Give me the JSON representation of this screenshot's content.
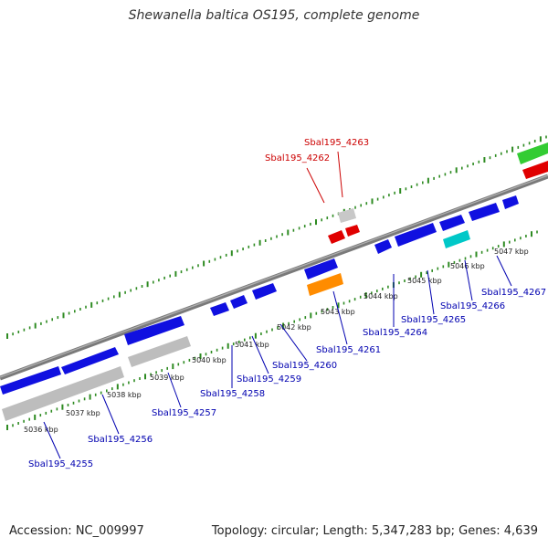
{
  "title": "Shewanella baltica OS195, complete genome",
  "footer": {
    "accession": "Accession: NC_009997",
    "summary": "Topology: circular; Length: 5,347,283 bp; Genes: 4,639"
  },
  "colors": {
    "backbone": "#808080",
    "ticks": "#2e8b22",
    "forward_gene": "#1010e0",
    "reverse_gene": "#1010e0",
    "pseudo_gene": "#bdbdbd",
    "rna_red": "#e00000",
    "orange": "#ff8c00",
    "cyan": "#00c8c8",
    "green": "#33cc33",
    "label_blue": "#0000b0",
    "label_red": "#cc0000"
  },
  "kbp_labels": [
    "5036 kbp",
    "5037 kbp",
    "5038 kbp",
    "5039 kbp",
    "5040 kbp",
    "5041 kbp",
    "5042 kbp",
    "5043 kbp",
    "5044 kbp",
    "5045 kbp",
    "5046 kbp",
    "5047 kbp"
  ],
  "gene_labels": [
    {
      "text": "Sbal195_4255",
      "color": "blue"
    },
    {
      "text": "Sbal195_4256",
      "color": "blue"
    },
    {
      "text": "Sbal195_4257",
      "color": "blue"
    },
    {
      "text": "Sbal195_4258",
      "color": "blue"
    },
    {
      "text": "Sbal195_4259",
      "color": "blue"
    },
    {
      "text": "Sbal195_4260",
      "color": "blue"
    },
    {
      "text": "Sbal195_4261",
      "color": "blue"
    },
    {
      "text": "Sbal195_4262",
      "color": "red"
    },
    {
      "text": "Sbal195_4263",
      "color": "red"
    },
    {
      "text": "Sbal195_4264",
      "color": "blue"
    },
    {
      "text": "Sbal195_4265",
      "color": "blue"
    },
    {
      "text": "Sbal195_4266",
      "color": "blue"
    },
    {
      "text": "Sbal195_4267",
      "color": "blue"
    }
  ]
}
